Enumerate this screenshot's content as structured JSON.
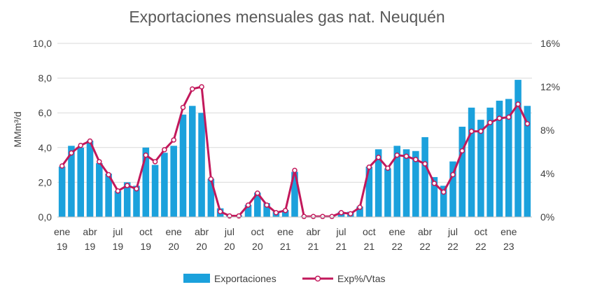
{
  "chart_data": {
    "type": "bar",
    "title": "Exportaciones mensuales gas nat. Neuquén",
    "ylabel": "MMm³/d",
    "ylim": [
      0,
      10
    ],
    "y_ticks": [
      "0,0",
      "2,0",
      "4,0",
      "6,0",
      "8,0",
      "10,0"
    ],
    "y2lim": [
      0,
      16
    ],
    "y2_ticks": [
      "0%",
      "4%",
      "8%",
      "12%",
      "16%"
    ],
    "x": [
      "2019-01",
      "2019-02",
      "2019-03",
      "2019-04",
      "2019-05",
      "2019-06",
      "2019-07",
      "2019-08",
      "2019-09",
      "2019-10",
      "2019-11",
      "2019-12",
      "2020-01",
      "2020-02",
      "2020-03",
      "2020-04",
      "2020-05",
      "2020-06",
      "2020-07",
      "2020-08",
      "2020-09",
      "2020-10",
      "2020-11",
      "2020-12",
      "2021-01",
      "2021-02",
      "2021-03",
      "2021-04",
      "2021-05",
      "2021-06",
      "2021-07",
      "2021-08",
      "2021-09",
      "2021-10",
      "2021-11",
      "2021-12",
      "2022-01",
      "2022-02",
      "2022-03",
      "2022-04",
      "2022-05",
      "2022-06",
      "2022-07",
      "2022-08",
      "2022-09",
      "2022-10",
      "2022-11",
      "2022-12",
      "2023-01",
      "2023-02",
      "2023-03"
    ],
    "x_tick_labels": [
      {
        "month": "ene",
        "year": "19",
        "index": 0
      },
      {
        "month": "abr",
        "year": "19",
        "index": 3
      },
      {
        "month": "jul",
        "year": "19",
        "index": 6
      },
      {
        "month": "oct",
        "year": "19",
        "index": 9
      },
      {
        "month": "ene",
        "year": "20",
        "index": 12
      },
      {
        "month": "abr",
        "year": "20",
        "index": 15
      },
      {
        "month": "jul",
        "year": "20",
        "index": 18
      },
      {
        "month": "oct",
        "year": "20",
        "index": 21
      },
      {
        "month": "ene",
        "year": "21",
        "index": 24
      },
      {
        "month": "abr",
        "year": "21",
        "index": 27
      },
      {
        "month": "jul",
        "year": "21",
        "index": 30
      },
      {
        "month": "oct",
        "year": "21",
        "index": 33
      },
      {
        "month": "ene",
        "year": "22",
        "index": 36
      },
      {
        "month": "abr",
        "year": "22",
        "index": 39
      },
      {
        "month": "jul",
        "year": "22",
        "index": 42
      },
      {
        "month": "oct",
        "year": "22",
        "index": 45
      },
      {
        "month": "ene",
        "year": "23",
        "index": 48
      }
    ],
    "series": [
      {
        "name": "Exportaciones",
        "kind": "bar",
        "axis": "left",
        "color": "#1ba1dc",
        "values": [
          2.9,
          4.1,
          4.0,
          4.4,
          3.1,
          2.5,
          1.5,
          2.0,
          1.8,
          4.0,
          3.0,
          3.7,
          4.1,
          5.9,
          6.4,
          6.0,
          2.2,
          0.5,
          0.1,
          0.1,
          0.7,
          1.4,
          0.8,
          0.3,
          0.4,
          2.6,
          0.05,
          0.05,
          0.05,
          0.05,
          0.3,
          0.3,
          0.6,
          2.9,
          3.9,
          2.8,
          4.1,
          3.9,
          3.8,
          4.6,
          2.3,
          1.8,
          3.2,
          5.2,
          6.3,
          5.6,
          6.3,
          6.7,
          6.8,
          7.9,
          6.4
        ]
      },
      {
        "name": "Exp%/Vtas",
        "kind": "line",
        "axis": "right",
        "color": "#c2185b",
        "values": [
          4.7,
          5.9,
          6.6,
          7.0,
          5.1,
          3.9,
          2.4,
          2.9,
          2.6,
          5.7,
          5.1,
          6.2,
          7.1,
          10.1,
          11.8,
          12.0,
          3.5,
          0.5,
          0.1,
          0.1,
          1.1,
          2.2,
          1.1,
          0.4,
          0.6,
          4.3,
          0.05,
          0.05,
          0.05,
          0.05,
          0.4,
          0.3,
          0.9,
          4.6,
          5.5,
          4.5,
          5.7,
          5.6,
          5.3,
          4.9,
          3.1,
          2.3,
          3.9,
          6.1,
          7.9,
          7.9,
          8.7,
          9.1,
          9.2,
          10.4,
          8.6
        ]
      }
    ],
    "legend": {
      "placement": "bottom",
      "items": [
        "Exportaciones",
        "Exp%/Vtas"
      ]
    },
    "grid": true,
    "colors": {
      "bar": "#1ba1dc",
      "line": "#c2185b",
      "marker_fill": "#ffffff",
      "grid": "#d9d9d9",
      "text": "#404040",
      "title": "#595959"
    }
  }
}
